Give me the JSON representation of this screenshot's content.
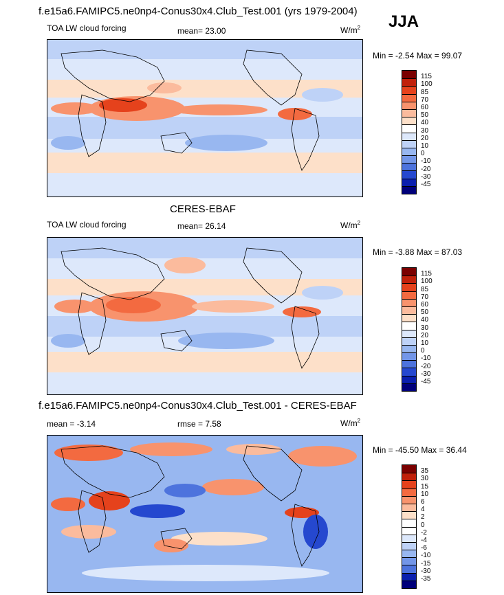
{
  "season": "JJA",
  "panels": [
    {
      "header": "f.e15a6.FAMIPC5.ne0np4-Conus30x4.Club_Test.001 (yrs 1979-2004)",
      "left_label": "TOA LW cloud forcing",
      "center_label": "mean=  23.00",
      "units": "W/m",
      "units_sup": "2",
      "minmax": "Min =  -2.54 Max =  99.07"
    },
    {
      "header": "CERES-EBAF",
      "left_label": "TOA LW cloud forcing",
      "center_label": "mean=  26.14",
      "units": "W/m",
      "units_sup": "2",
      "minmax": "Min =  -3.88 Max =  87.03"
    },
    {
      "header": "f.e15a6.FAMIPC5.ne0np4-Conus30x4.Club_Test.001 - CERES-EBAF",
      "left_label": "mean =  -3.14",
      "center_label": "rmse =   7.58",
      "units": "W/m",
      "units_sup": "2",
      "minmax": "Min = -45.50 Max =  36.44"
    }
  ],
  "chart_data": [
    {
      "type": "heatmap",
      "title": "f.e15a6.FAMIPC5.ne0np4-Conus30x4.Club_Test.001 (yrs 1979-2004)",
      "variable": "TOA LW cloud forcing",
      "units": "W/m2",
      "mean": 23.0,
      "min": -2.54,
      "max": 99.07,
      "colorbar_levels": [
        "115",
        "100",
        "85",
        "70",
        "60",
        "50",
        "40",
        "30",
        "20",
        "10",
        "0",
        "-10",
        "-20",
        "-30",
        "-45"
      ],
      "colorbar_colors": [
        "#7a0000",
        "#c0200a",
        "#e5421c",
        "#f36a40",
        "#f8936d",
        "#fbbb9d",
        "#fde0c9",
        "#ffffff",
        "#dde8fb",
        "#bed2f7",
        "#98b7f0",
        "#7396e8",
        "#4d73dd",
        "#2548cf",
        "#0a1fae",
        "#00007a"
      ]
    },
    {
      "type": "heatmap",
      "title": "CERES-EBAF",
      "variable": "TOA LW cloud forcing",
      "units": "W/m2",
      "mean": 26.14,
      "min": -3.88,
      "max": 87.03,
      "colorbar_levels": [
        "115",
        "100",
        "85",
        "70",
        "60",
        "50",
        "40",
        "30",
        "20",
        "10",
        "0",
        "-10",
        "-20",
        "-30",
        "-45"
      ],
      "colorbar_colors": [
        "#7a0000",
        "#c0200a",
        "#e5421c",
        "#f36a40",
        "#f8936d",
        "#fbbb9d",
        "#fde0c9",
        "#ffffff",
        "#dde8fb",
        "#bed2f7",
        "#98b7f0",
        "#7396e8",
        "#4d73dd",
        "#2548cf",
        "#0a1fae",
        "#00007a"
      ]
    },
    {
      "type": "heatmap",
      "title": "f.e15a6.FAMIPC5.ne0np4-Conus30x4.Club_Test.001 - CERES-EBAF",
      "units": "W/m2",
      "mean": -3.14,
      "rmse": 7.58,
      "min": -45.5,
      "max": 36.44,
      "colorbar_levels": [
        "35",
        "30",
        "15",
        "10",
        "6",
        "4",
        "2",
        "0",
        "-2",
        "-4",
        "-6",
        "-10",
        "-15",
        "-30",
        "-35"
      ],
      "colorbar_colors": [
        "#7a0000",
        "#c0200a",
        "#e5421c",
        "#f36a40",
        "#f8936d",
        "#fbbb9d",
        "#fde0c9",
        "#ffffff",
        "#ffffff",
        "#dde8fb",
        "#bed2f7",
        "#98b7f0",
        "#7396e8",
        "#4d73dd",
        "#0a1fae",
        "#00007a"
      ]
    }
  ]
}
